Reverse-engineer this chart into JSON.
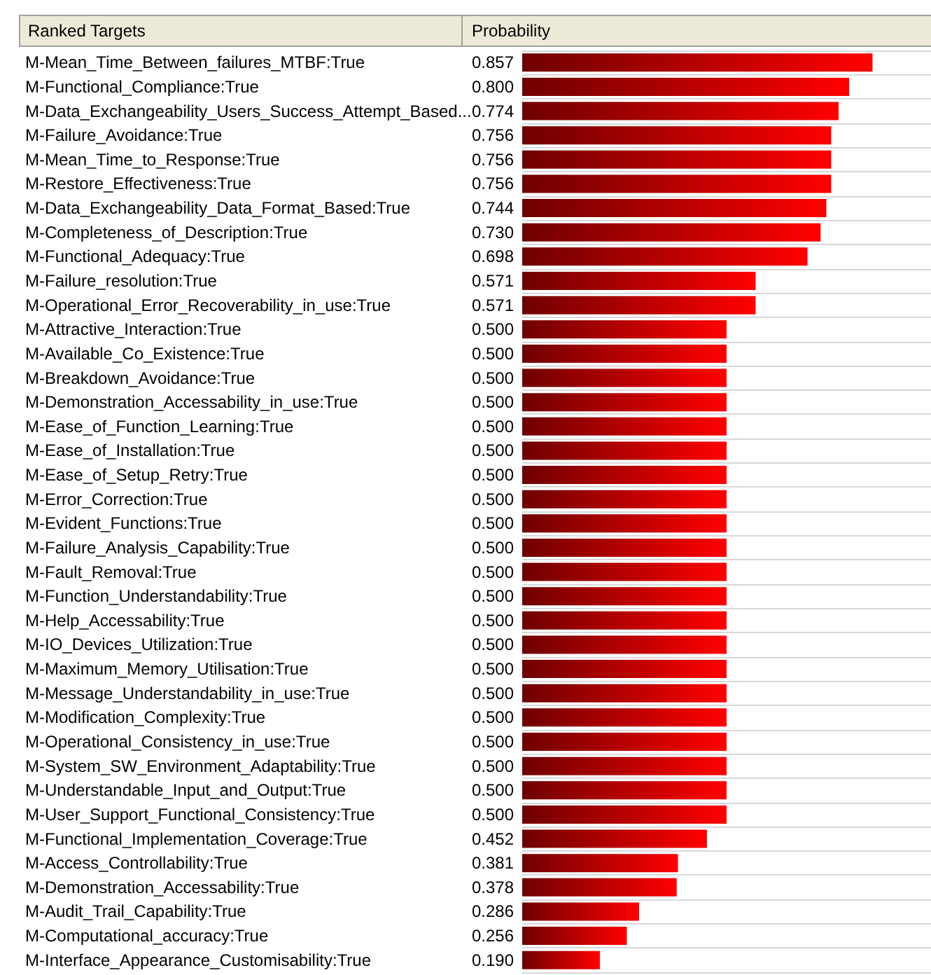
{
  "chart_data": {
    "type": "bar",
    "orientation": "horizontal",
    "ylabel": "Ranked Targets",
    "xlabel": "Probability",
    "categories": [
      "M-Mean_Time_Between_failures_MTBF:True",
      "M-Functional_Compliance:True",
      "M-Data_Exchangeability_Users_Success_Attempt_Based...",
      "M-Failure_Avoidance:True",
      "M-Mean_Time_to_Response:True",
      "M-Restore_Effectiveness:True",
      "M-Data_Exchangeability_Data_Format_Based:True",
      "M-Completeness_of_Description:True",
      "M-Functional_Adequacy:True",
      "M-Failure_resolution:True",
      "M-Operational_Error_Recoverability_in_use:True",
      "M-Attractive_Interaction:True",
      "M-Available_Co_Existence:True",
      "M-Breakdown_Avoidance:True",
      "M-Demonstration_Accessability_in_use:True",
      "M-Ease_of_Function_Learning:True",
      "M-Ease_of_Installation:True",
      "M-Ease_of_Setup_Retry:True",
      "M-Error_Correction:True",
      "M-Evident_Functions:True",
      "M-Failure_Analysis_Capability:True",
      "M-Fault_Removal:True",
      "M-Function_Understandability:True",
      "M-Help_Accessability:True",
      "M-IO_Devices_Utilization:True",
      "M-Maximum_Memory_Utilisation:True",
      "M-Message_Understandability_in_use:True",
      "M-Modification_Complexity:True",
      "M-Operational_Consistency_in_use:True",
      "M-System_SW_Environment_Adaptability:True",
      "M-Understandable_Input_and_Output:True",
      "M-User_Support_Functional_Consistency:True",
      "M-Functional_Implementation_Coverage:True",
      "M-Access_Controllability:True",
      "M-Demonstration_Accessability:True",
      "M-Audit_Trail_Capability:True",
      "M-Computational_accuracy:True",
      "M-Interface_Appearance_Customisability:True"
    ],
    "values": [
      0.857,
      0.8,
      0.774,
      0.756,
      0.756,
      0.756,
      0.744,
      0.73,
      0.698,
      0.571,
      0.571,
      0.5,
      0.5,
      0.5,
      0.5,
      0.5,
      0.5,
      0.5,
      0.5,
      0.5,
      0.5,
      0.5,
      0.5,
      0.5,
      0.5,
      0.5,
      0.5,
      0.5,
      0.5,
      0.5,
      0.5,
      0.5,
      0.452,
      0.381,
      0.378,
      0.286,
      0.256,
      0.19
    ],
    "value_labels": [
      "0.857",
      "0.800",
      "0.774",
      "0.756",
      "0.756",
      "0.756",
      "0.744",
      "0.730",
      "0.698",
      "0.571",
      "0.571",
      "0.500",
      "0.500",
      "0.500",
      "0.500",
      "0.500",
      "0.500",
      "0.500",
      "0.500",
      "0.500",
      "0.500",
      "0.500",
      "0.500",
      "0.500",
      "0.500",
      "0.500",
      "0.500",
      "0.500",
      "0.500",
      "0.500",
      "0.500",
      "0.500",
      "0.452",
      "0.381",
      "0.378",
      "0.286",
      "0.256",
      "0.190"
    ],
    "color": "#ff0000",
    "xlim": [
      0,
      1
    ],
    "tick_labels": "y",
    "grid": "y"
  }
}
